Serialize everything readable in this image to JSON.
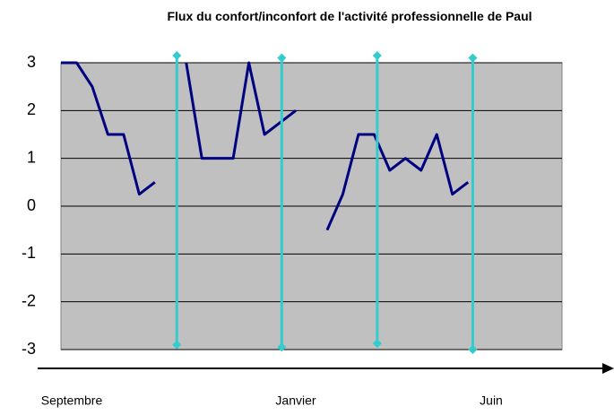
{
  "chart_data": {
    "type": "line",
    "title": "Flux du confort/inconfort de l'activité professionnelle de Paul",
    "categories": [
      null,
      null,
      null,
      null,
      null,
      null,
      null,
      null,
      null,
      null,
      null,
      null,
      null,
      null,
      null,
      null,
      null,
      null,
      null,
      null,
      null,
      null,
      null,
      null,
      null,
      null,
      null,
      null,
      null,
      null,
      null,
      null,
      null
    ],
    "series": [
      {
        "color": "#000080",
        "values": [
          3,
          3,
          2.5,
          1.5,
          1.5,
          0.25,
          0.5,
          null,
          3,
          1,
          1,
          1,
          3,
          1.5,
          1.75,
          2,
          null,
          -0.5,
          0.25,
          1.5,
          1.5,
          0.75,
          1,
          0.75,
          1.5,
          0.25,
          0.5,
          null,
          null,
          null,
          null,
          null,
          null
        ]
      }
    ],
    "markers": {
      "color": "#33cccc",
      "lines": [
        {
          "x": 7.4,
          "top": 3.15,
          "bottom": -2.9
        },
        {
          "x": 14.1,
          "top": 3.1,
          "bottom": -2.95
        },
        {
          "x": 20.2,
          "top": 3.15,
          "bottom": -2.87
        },
        {
          "x": 26.3,
          "top": 3.1,
          "bottom": -3
        }
      ]
    },
    "ylim": [
      -3,
      3
    ],
    "yticks": [
      -3,
      -2,
      -1,
      0,
      1,
      2,
      3
    ],
    "grid": true,
    "plot_background": "#c0c0c0",
    "x_labels": [
      "Septembre",
      "Janvier",
      "Juin"
    ]
  }
}
